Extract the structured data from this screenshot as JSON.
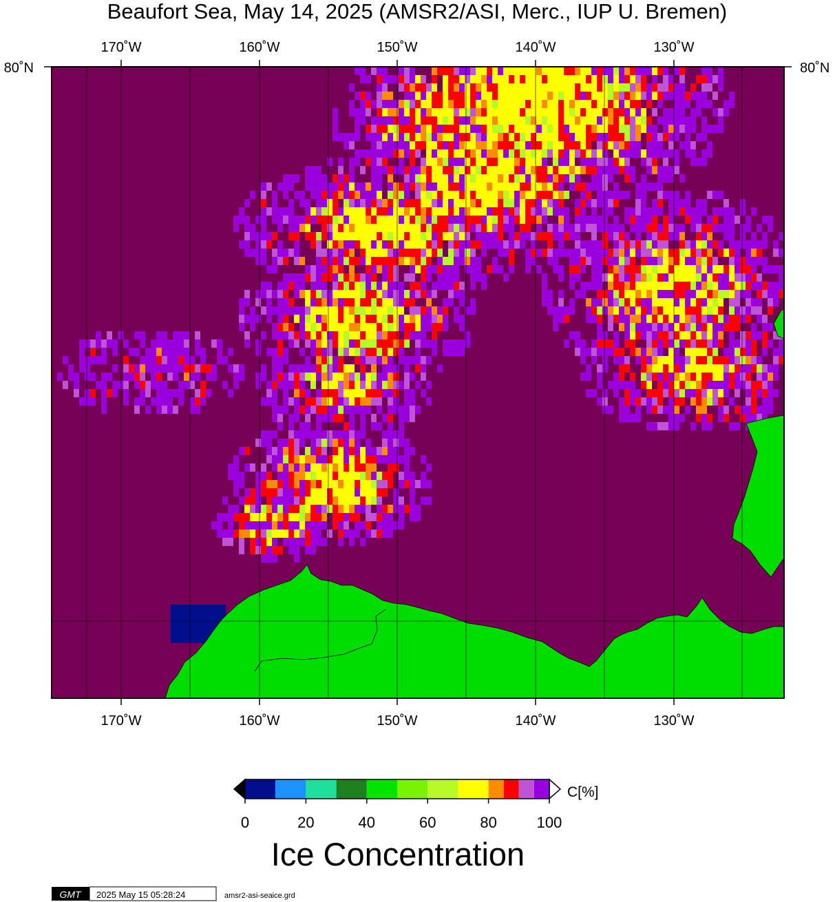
{
  "title": "Beaufort Sea, May 14, 2025 (AMSR2/ASI, Merc., IUP U. Bremen)",
  "map": {
    "top_latitude_label": "80˚N",
    "longitude_labels": [
      "170˚W",
      "160˚W",
      "150˚W",
      "140˚W",
      "130˚W"
    ],
    "colors": {
      "open_water": "#760056",
      "land": "#00dc00",
      "gridline": "#000000"
    }
  },
  "colorbar": {
    "title": "Ice Concentration",
    "unit_label": "C[%]",
    "tick_labels": [
      "0",
      "20",
      "40",
      "60",
      "80",
      "100"
    ],
    "range": [
      0,
      100
    ],
    "bins": [
      {
        "from": 0,
        "to": 10,
        "color": "#000e8c"
      },
      {
        "from": 10,
        "to": 20,
        "color": "#1e90ff"
      },
      {
        "from": 20,
        "to": 30,
        "color": "#1edf9e"
      },
      {
        "from": 30,
        "to": 40,
        "color": "#1e7f1e"
      },
      {
        "from": 40,
        "to": 50,
        "color": "#00e400"
      },
      {
        "from": 50,
        "to": 60,
        "color": "#7af300"
      },
      {
        "from": 60,
        "to": 70,
        "color": "#b6fb28"
      },
      {
        "from": 70,
        "to": 80,
        "color": "#ffff00"
      },
      {
        "from": 80,
        "to": 85,
        "color": "#ff8c00"
      },
      {
        "from": 85,
        "to": 90,
        "color": "#ff0000"
      },
      {
        "from": 90,
        "to": 95,
        "color": "#bf55d6"
      },
      {
        "from": 95,
        "to": 100,
        "color": "#9a00dd"
      }
    ],
    "below_color": "#000000",
    "above_color": "#ffffff"
  },
  "footer": {
    "logo_text": "GMT",
    "timestamp": "2025 May 15 05:28:24",
    "filename": "amsr2-asi-seaice.grd"
  }
}
